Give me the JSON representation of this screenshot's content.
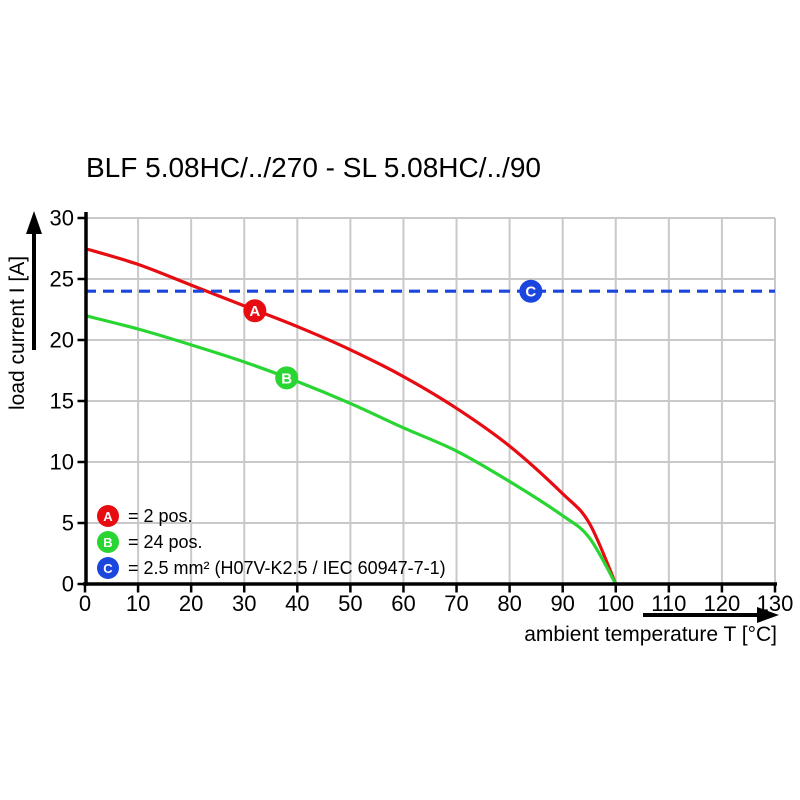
{
  "page_title": "BLF 5.08HC/../270 - SL 5.08HC/../90",
  "chart_data": {
    "type": "line",
    "title": "BLF 5.08HC/../270 - SL 5.08HC/../90",
    "xlabel": "ambient temperature T [°C]",
    "ylabel": "load current I [A]",
    "xlim": [
      0,
      130
    ],
    "ylim": [
      0,
      30
    ],
    "x_ticks": [
      0,
      10,
      20,
      30,
      40,
      50,
      60,
      70,
      80,
      90,
      100,
      110,
      120,
      130
    ],
    "y_ticks": [
      0,
      5,
      10,
      15,
      20,
      25,
      30
    ],
    "grid": true,
    "grid_color": "#c9c9c9",
    "axis_color": "#000000",
    "series": [
      {
        "id": "A",
        "name": "2 pos.",
        "color": "#e60c12",
        "style": "solid",
        "points": [
          [
            0,
            27.5
          ],
          [
            10,
            26.2
          ],
          [
            20,
            24.5
          ],
          [
            30,
            22.8
          ],
          [
            40,
            21.1
          ],
          [
            50,
            19.2
          ],
          [
            60,
            17.0
          ],
          [
            70,
            14.4
          ],
          [
            80,
            11.3
          ],
          [
            90,
            7.4
          ],
          [
            95,
            5.0
          ],
          [
            100,
            0
          ]
        ],
        "marker": {
          "x": 32,
          "y": 22.4,
          "label": "A"
        }
      },
      {
        "id": "B",
        "name": "24 pos.",
        "color": "#28d532",
        "style": "solid",
        "points": [
          [
            0,
            22.0
          ],
          [
            10,
            20.9
          ],
          [
            20,
            19.6
          ],
          [
            30,
            18.2
          ],
          [
            40,
            16.6
          ],
          [
            50,
            14.8
          ],
          [
            60,
            12.8
          ],
          [
            70,
            10.9
          ],
          [
            80,
            8.4
          ],
          [
            90,
            5.6
          ],
          [
            95,
            3.8
          ],
          [
            100,
            0
          ]
        ],
        "marker": {
          "x": 38,
          "y": 16.9,
          "label": "B"
        }
      },
      {
        "id": "C",
        "name": "2.5 mm² (H07V-K2.5 / IEC 60947-7-1)",
        "color": "#1a46dd",
        "style": "dashed",
        "points": [
          [
            0,
            24
          ],
          [
            130,
            24
          ]
        ],
        "marker": {
          "x": 84,
          "y": 24,
          "label": "C"
        }
      }
    ],
    "legend": {
      "position": "bottom-left",
      "items": [
        {
          "letter": "A",
          "label": "= 2 pos."
        },
        {
          "letter": "B",
          "label": "= 24 pos."
        },
        {
          "letter": "C",
          "label": "= 2.5 mm² (H07V-K2.5 / IEC 60947-7-1)"
        }
      ]
    }
  }
}
